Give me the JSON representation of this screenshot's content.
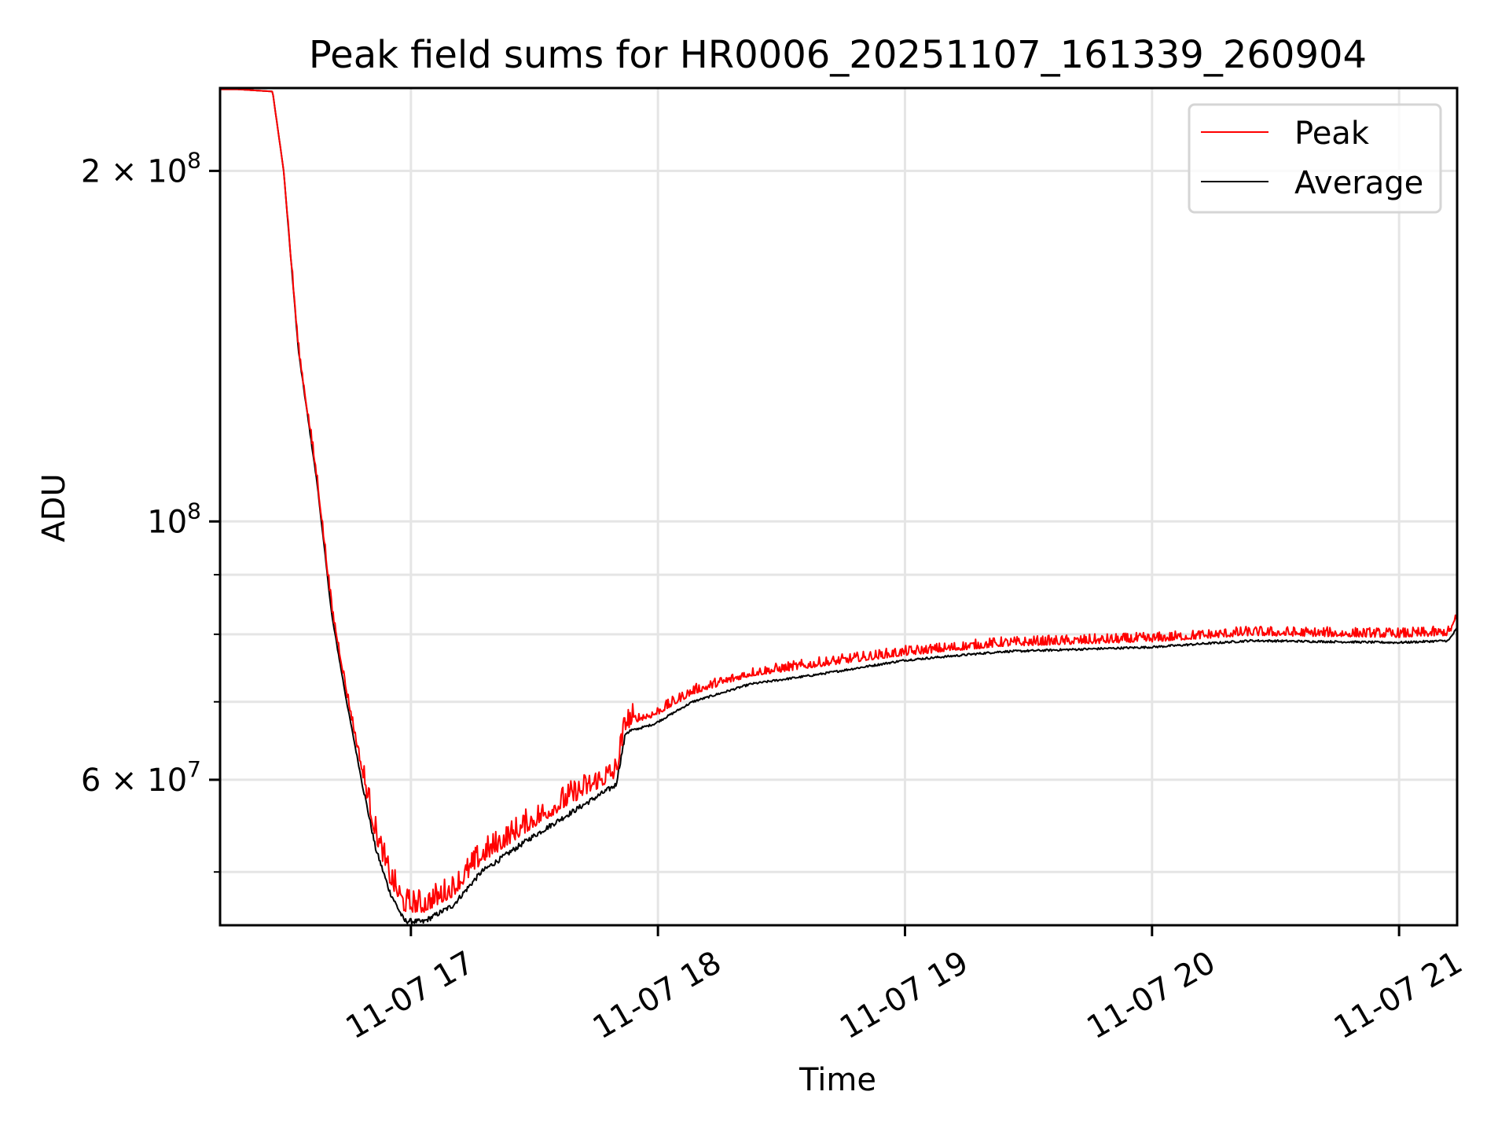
{
  "chart_data": {
    "type": "line",
    "title": "Peak field sums for HR0006_20251107_161339_260904",
    "xlabel": "Time",
    "ylabel": "ADU",
    "yscale": "log",
    "x_unit": "hour of day (2025-11-07)",
    "xlim": [
      16.2275,
      21.235
    ],
    "ylim": [
      45000000,
      235600000
    ],
    "grid": true,
    "legend_position": "top-right",
    "xticks": [
      {
        "value": 17,
        "label": "11-07 17"
      },
      {
        "value": 18,
        "label": "11-07 18"
      },
      {
        "value": 19,
        "label": "11-07 19"
      },
      {
        "value": 20,
        "label": "11-07 20"
      },
      {
        "value": 21,
        "label": "11-07 21"
      }
    ],
    "yticks_major": [
      {
        "value": 200000000,
        "label": "2 × 10",
        "exp": "8"
      },
      {
        "value": 100000000,
        "label": "10",
        "exp": "8"
      },
      {
        "value": 60000000,
        "label": "6 × 10",
        "exp": "7"
      }
    ],
    "yticks_minor": [
      50000000,
      70000000,
      80000000,
      90000000
    ],
    "x": [
      16.2275,
      16.3,
      16.44,
      16.485,
      16.545,
      16.62,
      16.68,
      16.74,
      16.8,
      16.857,
      16.914,
      16.973,
      17.05,
      17.17,
      17.285,
      17.48,
      17.67,
      17.83,
      17.87,
      17.985,
      18.14,
      18.375,
      18.65,
      19.0,
      19.39,
      20.0,
      20.4,
      21.0,
      21.2,
      21.235
    ],
    "series": [
      {
        "name": "Peak",
        "color": "#ff0000",
        "values": [
          235000000,
          235000000,
          234000000,
          200000000,
          140700000,
          109100000,
          84200000,
          71400000,
          61500000,
          54000000,
          49500000,
          46800000,
          46700000,
          48200000,
          51500000,
          55000000,
          58300000,
          60900000,
          67200000,
          68300000,
          71400000,
          74000000,
          75400000,
          77100000,
          78500000,
          79200000,
          80200000,
          79900000,
          80200000,
          82600000
        ]
      },
      {
        "name": "Average",
        "color": "#000000",
        "values": [
          235000000,
          235000000,
          234000000,
          200000000,
          140000000,
          108000000,
          83000000,
          70000000,
          60000000,
          52400000,
          48100000,
          45400000,
          45300000,
          46800000,
          50000000,
          53400000,
          56600000,
          59400000,
          65900000,
          67000000,
          70000000,
          72500000,
          73900000,
          76000000,
          77300000,
          78000000,
          79000000,
          78700000,
          79000000,
          81000000
        ]
      }
    ]
  }
}
